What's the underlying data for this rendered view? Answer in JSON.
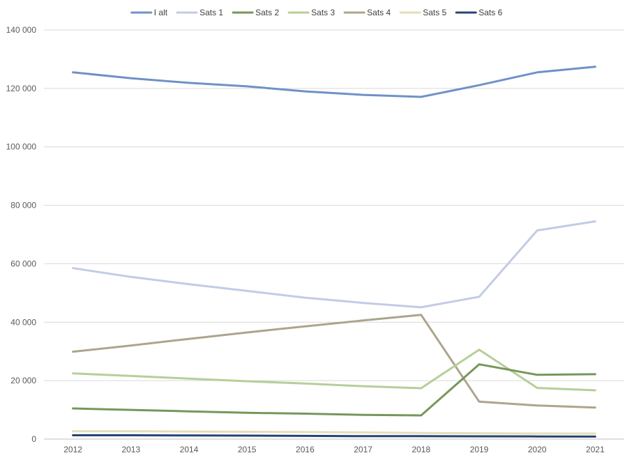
{
  "chart_data": {
    "type": "line",
    "title": "",
    "xlabel": "",
    "ylabel": "",
    "categories": [
      "2012",
      "2013",
      "2014",
      "2015",
      "2016",
      "2017",
      "2018",
      "2019",
      "2020",
      "2021"
    ],
    "ylim": [
      0,
      140000
    ],
    "yticks": [
      0,
      20000,
      40000,
      60000,
      80000,
      100000,
      120000,
      140000
    ],
    "ytick_labels": [
      "0",
      "20 000",
      "40 000",
      "60 000",
      "80 000",
      "100 000",
      "120 000",
      "140 000"
    ],
    "grid": "horizontal",
    "legend_position": "top",
    "series": [
      {
        "name": "I alt",
        "color": "#6f91c8",
        "values": [
          125500,
          123500,
          121900,
          120700,
          119000,
          117800,
          117100,
          121100,
          125500,
          127400
        ]
      },
      {
        "name": "Sats 1",
        "color": "#c3cbe6",
        "values": [
          58500,
          55500,
          53000,
          50700,
          48400,
          46600,
          45100,
          48700,
          71400,
          74500
        ]
      },
      {
        "name": "Sats 2",
        "color": "#76975b",
        "values": [
          10500,
          10000,
          9500,
          9000,
          8700,
          8300,
          8100,
          25600,
          22000,
          22200
        ]
      },
      {
        "name": "Sats 3",
        "color": "#b5cf9a",
        "values": [
          22500,
          21600,
          20700,
          19800,
          19000,
          18100,
          17400,
          30600,
          17500,
          16700
        ]
      },
      {
        "name": "Sats 4",
        "color": "#ada58b",
        "values": [
          29900,
          32000,
          34300,
          36500,
          38600,
          40600,
          42500,
          12800,
          11500,
          10800
        ]
      },
      {
        "name": "Sats 5",
        "color": "#e6dcb9",
        "values": [
          2700,
          2700,
          2600,
          2500,
          2400,
          2300,
          2100,
          2000,
          1900,
          1900
        ]
      },
      {
        "name": "Sats 6",
        "color": "#254476",
        "values": [
          1300,
          1300,
          1250,
          1200,
          1100,
          1000,
          1000,
          950,
          900,
          850
        ]
      }
    ]
  }
}
